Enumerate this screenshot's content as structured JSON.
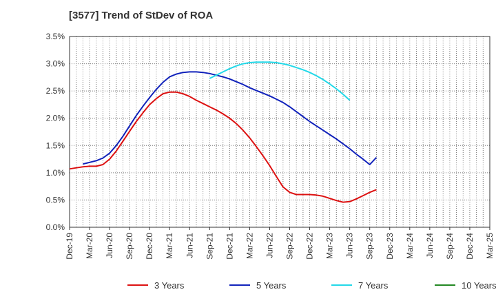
{
  "chart_data": {
    "type": "line",
    "title": "[3577]  Trend of StDev of ROA",
    "xlabel": "",
    "ylabel": "",
    "x_tick_labels": [
      "Dec-19",
      "Mar-20",
      "Jun-20",
      "Sep-20",
      "Dec-20",
      "Mar-21",
      "Jun-21",
      "Sep-21",
      "Dec-21",
      "Mar-22",
      "Jun-22",
      "Sep-22",
      "Dec-22",
      "Mar-23",
      "Jun-23",
      "Sep-23",
      "Dec-23",
      "Mar-24",
      "Jun-24",
      "Sep-24",
      "Dec-24",
      "Mar-25"
    ],
    "y_tick_labels": [
      "0.0%",
      "0.5%",
      "1.0%",
      "1.5%",
      "2.0%",
      "2.5%",
      "3.0%",
      "3.5%"
    ],
    "ylim": [
      0,
      3.5
    ],
    "y_unit": "%",
    "grid": true,
    "legend_position": "bottom",
    "series": [
      {
        "name": "3 Years",
        "color": "#dd1111",
        "points": [
          [
            0,
            1.07
          ],
          [
            1,
            1.09
          ],
          [
            2,
            1.11
          ],
          [
            3,
            1.12
          ],
          [
            4,
            1.12
          ],
          [
            5,
            1.15
          ],
          [
            6,
            1.25
          ],
          [
            7,
            1.4
          ],
          [
            8,
            1.58
          ],
          [
            9,
            1.76
          ],
          [
            10,
            1.94
          ],
          [
            11,
            2.1
          ],
          [
            12,
            2.25
          ],
          [
            13,
            2.36
          ],
          [
            14,
            2.45
          ],
          [
            15,
            2.48
          ],
          [
            16,
            2.48
          ],
          [
            17,
            2.45
          ],
          [
            18,
            2.4
          ],
          [
            19,
            2.33
          ],
          [
            20,
            2.27
          ],
          [
            21,
            2.21
          ],
          [
            22,
            2.15
          ],
          [
            23,
            2.08
          ],
          [
            24,
            2.0
          ],
          [
            25,
            1.9
          ],
          [
            26,
            1.78
          ],
          [
            27,
            1.64
          ],
          [
            28,
            1.48
          ],
          [
            29,
            1.31
          ],
          [
            30,
            1.13
          ],
          [
            31,
            0.93
          ],
          [
            32,
            0.74
          ],
          [
            33,
            0.64
          ],
          [
            34,
            0.6
          ],
          [
            35,
            0.6
          ],
          [
            36,
            0.6
          ],
          [
            37,
            0.59
          ],
          [
            38,
            0.57
          ],
          [
            39,
            0.53
          ],
          [
            40,
            0.49
          ],
          [
            41,
            0.46
          ],
          [
            42,
            0.47
          ],
          [
            43,
            0.52
          ],
          [
            44,
            0.58
          ],
          [
            45,
            0.64
          ],
          [
            46,
            0.69
          ]
        ]
      },
      {
        "name": "5 Years",
        "color": "#1122bb",
        "points": [
          [
            2,
            1.16
          ],
          [
            3,
            1.19
          ],
          [
            4,
            1.22
          ],
          [
            5,
            1.27
          ],
          [
            6,
            1.36
          ],
          [
            7,
            1.5
          ],
          [
            8,
            1.67
          ],
          [
            9,
            1.86
          ],
          [
            10,
            2.05
          ],
          [
            11,
            2.22
          ],
          [
            12,
            2.38
          ],
          [
            13,
            2.53
          ],
          [
            14,
            2.66
          ],
          [
            15,
            2.76
          ],
          [
            16,
            2.81
          ],
          [
            17,
            2.84
          ],
          [
            18,
            2.85
          ],
          [
            19,
            2.85
          ],
          [
            20,
            2.84
          ],
          [
            21,
            2.82
          ],
          [
            22,
            2.79
          ],
          [
            23,
            2.76
          ],
          [
            24,
            2.72
          ],
          [
            25,
            2.67
          ],
          [
            26,
            2.62
          ],
          [
            27,
            2.56
          ],
          [
            28,
            2.51
          ],
          [
            29,
            2.46
          ],
          [
            30,
            2.41
          ],
          [
            31,
            2.35
          ],
          [
            32,
            2.29
          ],
          [
            33,
            2.21
          ],
          [
            34,
            2.12
          ],
          [
            35,
            2.03
          ],
          [
            36,
            1.94
          ],
          [
            37,
            1.86
          ],
          [
            38,
            1.78
          ],
          [
            39,
            1.7
          ],
          [
            40,
            1.62
          ],
          [
            41,
            1.53
          ],
          [
            42,
            1.44
          ],
          [
            43,
            1.34
          ],
          [
            44,
            1.25
          ],
          [
            45,
            1.15
          ],
          [
            46,
            1.28
          ]
        ]
      },
      {
        "name": "7 Years",
        "color": "#22d8e8",
        "points": [
          [
            21,
            2.73
          ],
          [
            22,
            2.79
          ],
          [
            23,
            2.85
          ],
          [
            24,
            2.91
          ],
          [
            25,
            2.96
          ],
          [
            26,
            3.0
          ],
          [
            27,
            3.02
          ],
          [
            28,
            3.03
          ],
          [
            29,
            3.03
          ],
          [
            30,
            3.03
          ],
          [
            31,
            3.02
          ],
          [
            32,
            3.0
          ],
          [
            33,
            2.97
          ],
          [
            34,
            2.93
          ],
          [
            35,
            2.89
          ],
          [
            36,
            2.84
          ],
          [
            37,
            2.78
          ],
          [
            38,
            2.71
          ],
          [
            39,
            2.63
          ],
          [
            40,
            2.54
          ],
          [
            41,
            2.44
          ],
          [
            42,
            2.33
          ]
        ]
      },
      {
        "name": "10 Years",
        "color": "#228822",
        "points": []
      }
    ]
  }
}
